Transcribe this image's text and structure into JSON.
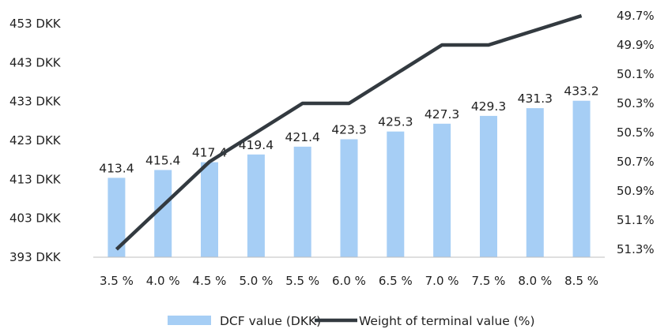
{
  "chart_data": {
    "type": "bar",
    "categories": [
      "3.5 %",
      "4.0 %",
      "4.5 %",
      "5.0 %",
      "5.5 %",
      "6.0 %",
      "6.5 %",
      "7.0 %",
      "7.5 %",
      "8.0 %",
      "8.5 %"
    ],
    "series": [
      {
        "name": "DCF value (DKK)",
        "type": "bar",
        "axis": "left",
        "color": "#a6cef5",
        "values": [
          413.4,
          415.4,
          417.4,
          419.4,
          421.4,
          423.3,
          425.3,
          427.3,
          429.3,
          431.3,
          433.2
        ]
      },
      {
        "name": "Weight of terminal value (%)",
        "type": "line",
        "axis": "right",
        "color": "#333a40",
        "values": [
          51.3,
          51.0,
          50.7,
          50.5,
          50.3,
          50.3,
          50.1,
          49.9,
          49.9,
          49.8,
          49.7
        ]
      }
    ],
    "y_left": {
      "ylim": [
        393,
        453
      ],
      "ticks": [
        393,
        403,
        413,
        423,
        433,
        443,
        453
      ],
      "tick_labels": [
        "393 DKK",
        "403 DKK",
        "413 DKK",
        "423 DKK",
        "433 DKK",
        "443 DKK",
        "453 DKK"
      ]
    },
    "y_right": {
      "ylim": [
        49.7,
        51.3
      ],
      "reversed": true,
      "ticks": [
        49.7,
        49.9,
        50.1,
        50.3,
        50.5,
        50.7,
        50.9,
        51.1,
        51.3
      ],
      "tick_labels": [
        "49.7%",
        "49.9%",
        "50.1%",
        "50.3%",
        "50.5%",
        "50.7%",
        "50.9%",
        "51.1%",
        "51.3%"
      ]
    },
    "data_labels": [
      "413.4",
      "415.4",
      "417.4",
      "419.4",
      "421.4",
      "423.3",
      "425.3",
      "427.3",
      "429.3",
      "431.3",
      "433.2"
    ],
    "grid": false,
    "legend_position": "bottom"
  }
}
